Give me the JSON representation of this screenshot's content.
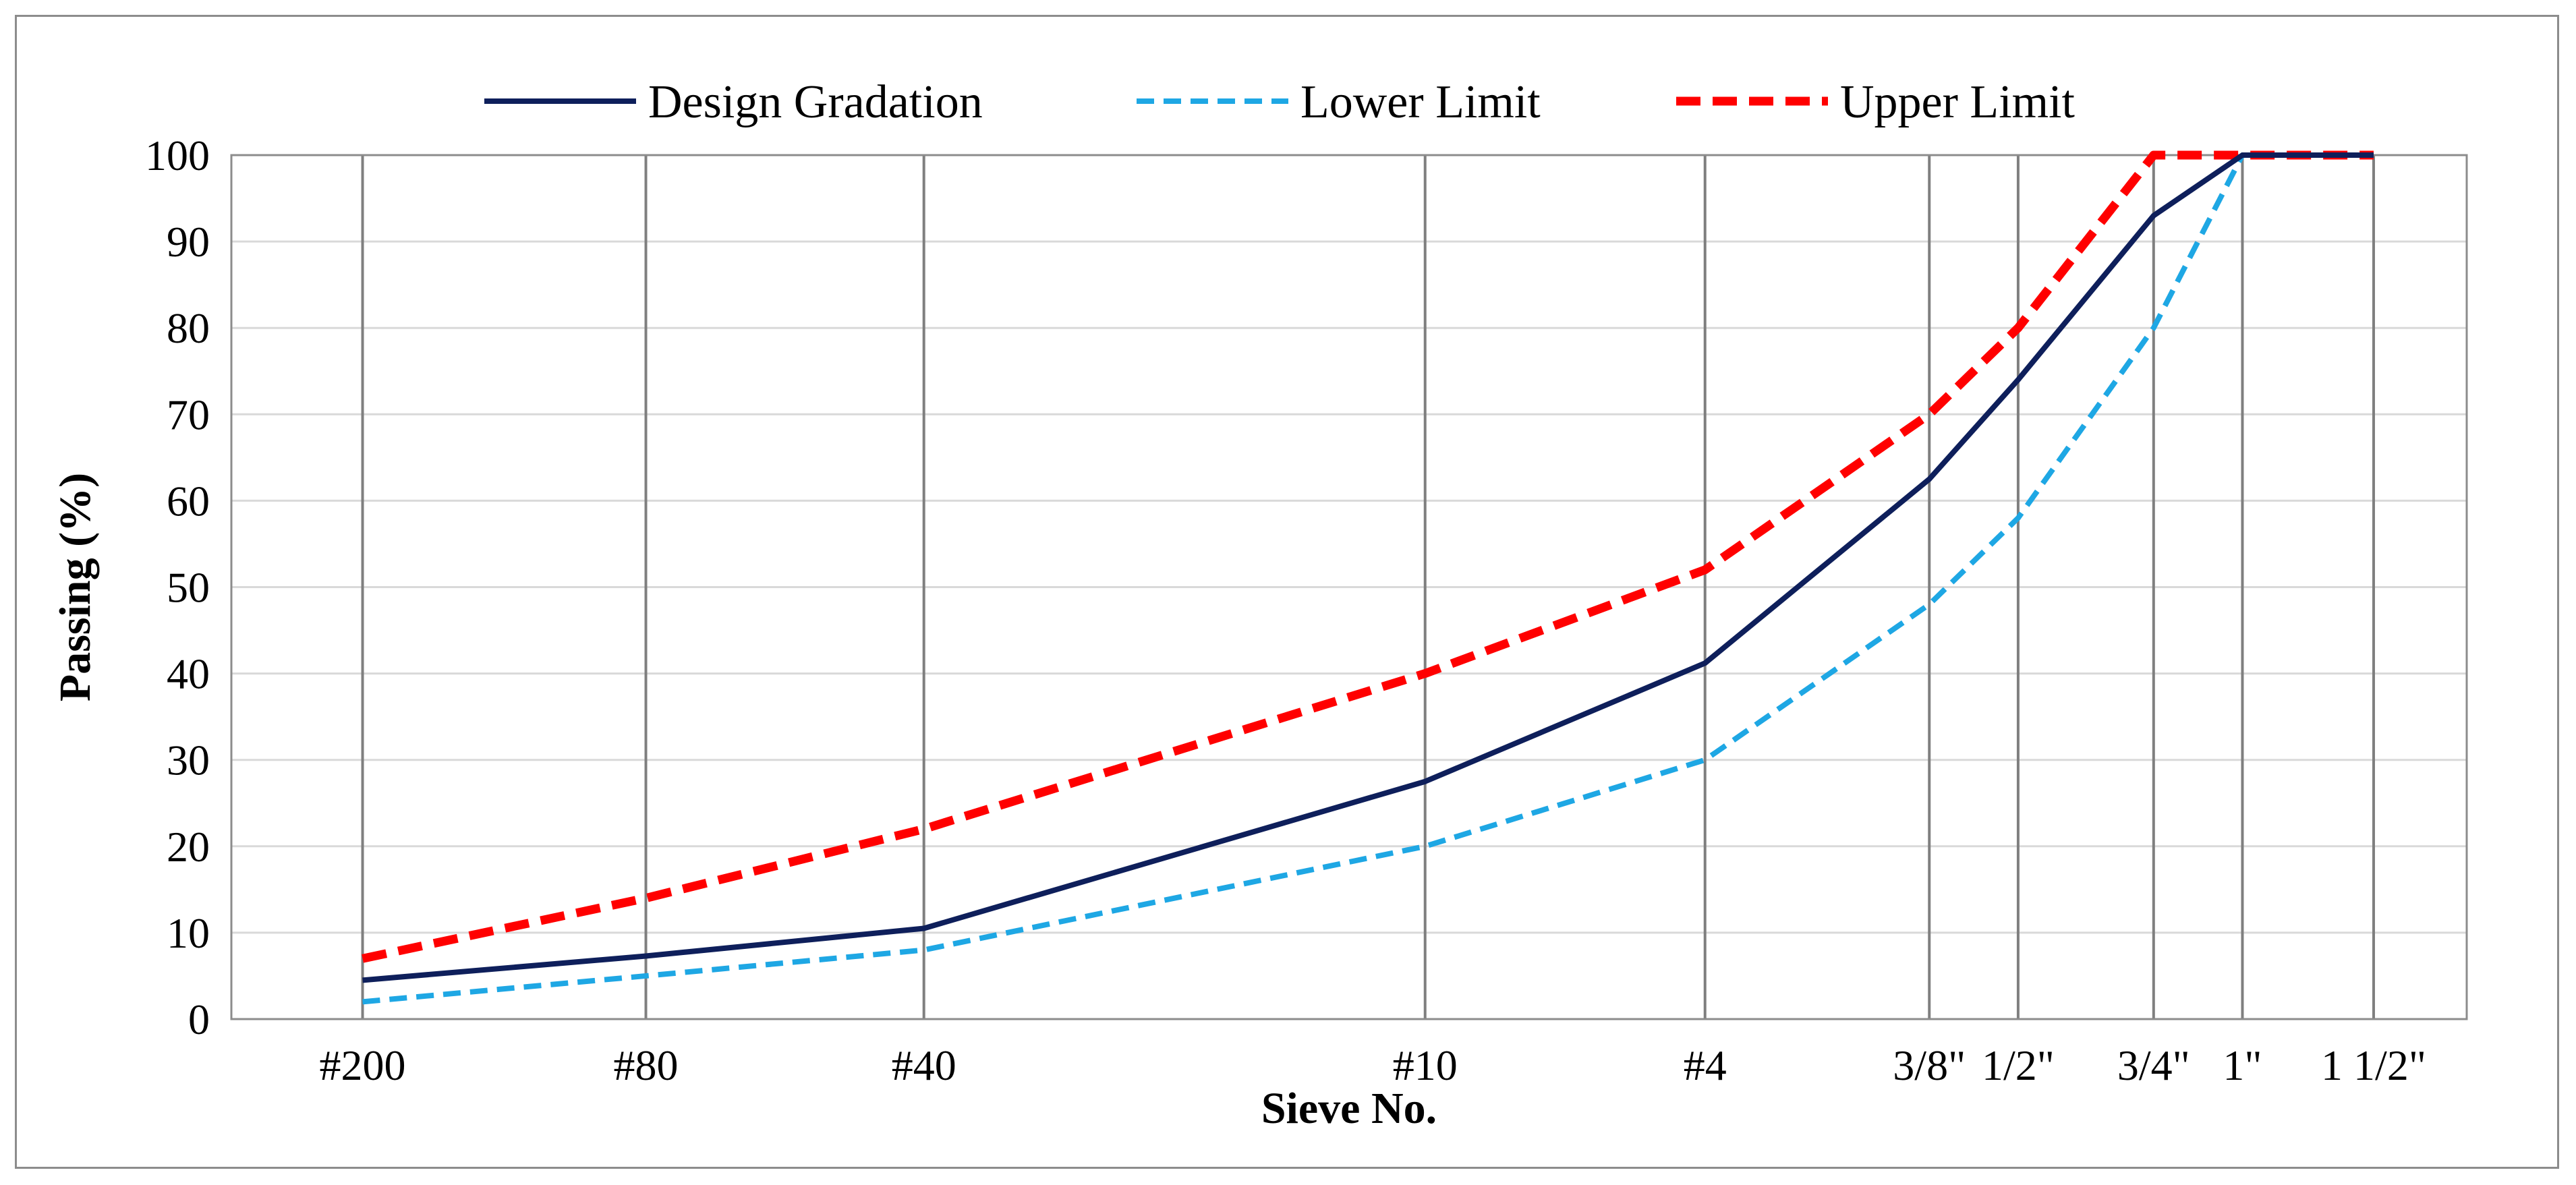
{
  "chart_data": {
    "type": "line",
    "title": "",
    "xlabel": "Sieve No.",
    "ylabel": "Passing (%)",
    "ylim": [
      0,
      100
    ],
    "yticks": [
      0,
      10,
      20,
      30,
      40,
      50,
      60,
      70,
      80,
      90,
      100
    ],
    "x_scale": "log",
    "x_unit": "mm",
    "xlim_mm": [
      0.05,
      50
    ],
    "categories": [
      "#200",
      "#80",
      "#40",
      "#10",
      "#4",
      "3/8\"",
      "1/2\"",
      "3/4\"",
      "1\"",
      "1 1/2\""
    ],
    "sieve_sizes_mm": [
      0.075,
      0.18,
      0.425,
      2.0,
      4.75,
      9.5,
      12.5,
      19.0,
      25.0,
      37.5
    ],
    "grid": true,
    "legend_position": "top",
    "series": [
      {
        "name": "Design Gradation",
        "color": "#0e1f5b",
        "style": "solid",
        "values": [
          4.5,
          7.3,
          10.5,
          27.5,
          41.2,
          62.5,
          74.0,
          93.0,
          100,
          100
        ]
      },
      {
        "name": "Lower Limit",
        "color": "#1ea7e4",
        "style": "dashed",
        "values": [
          2.0,
          5.0,
          8.0,
          20.0,
          30.0,
          48.0,
          58.0,
          80.0,
          100,
          100
        ]
      },
      {
        "name": "Upper Limit",
        "color": "#ff0000",
        "style": "dashed",
        "values": [
          7.0,
          14.0,
          22.0,
          40.0,
          52.0,
          70.0,
          80.0,
          100,
          100,
          100
        ]
      }
    ]
  }
}
